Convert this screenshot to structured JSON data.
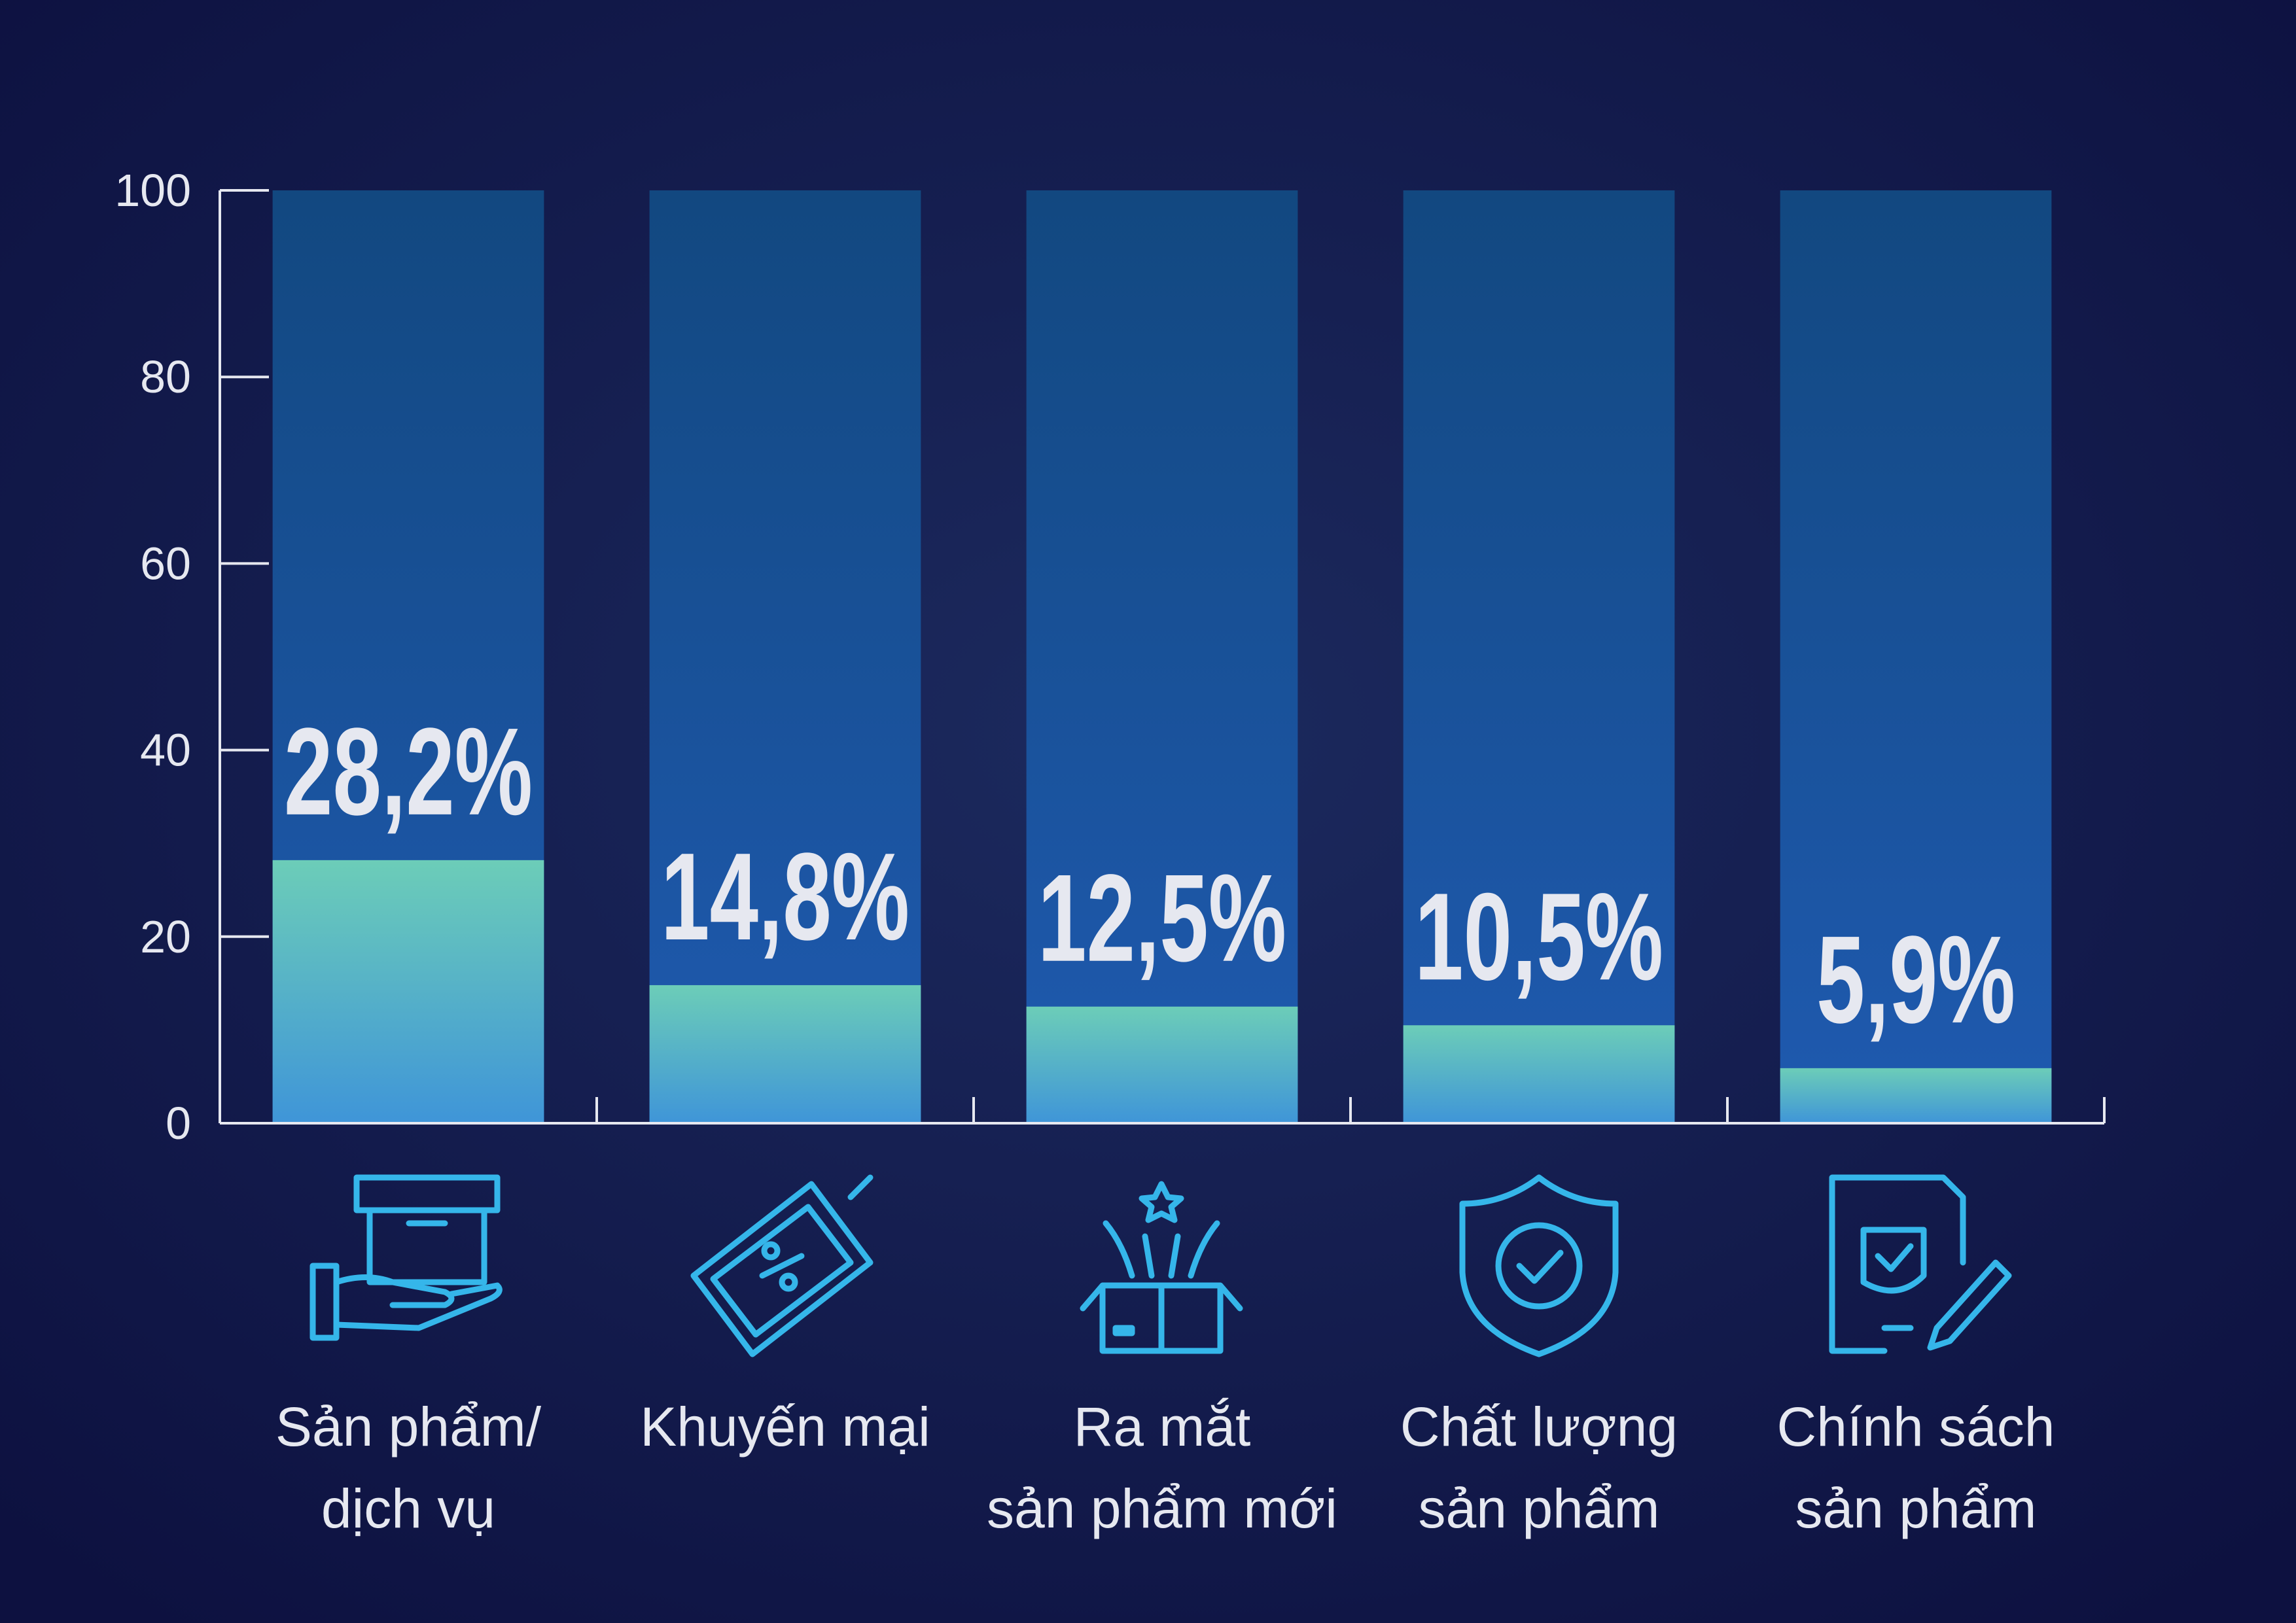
{
  "chart_data": {
    "type": "bar",
    "categories": [
      "Sản phẩm/\ndịch vụ",
      "Khuyến mại",
      "Ra mắt\nsản phẩm mới",
      "Chất lượng\nsản phẩm",
      "Chính sách\nsản phẩm"
    ],
    "values": [
      28.2,
      14.8,
      12.5,
      10.5,
      5.9
    ],
    "value_labels": [
      "28,2%",
      "14,8%",
      "12,5%",
      "10,5%",
      "5,9%"
    ],
    "ylim": [
      0,
      100
    ],
    "yticks": [
      0,
      20,
      40,
      60,
      80,
      100
    ],
    "color": "#6cc7bd",
    "track_color": "#1d4f8f"
  }
}
